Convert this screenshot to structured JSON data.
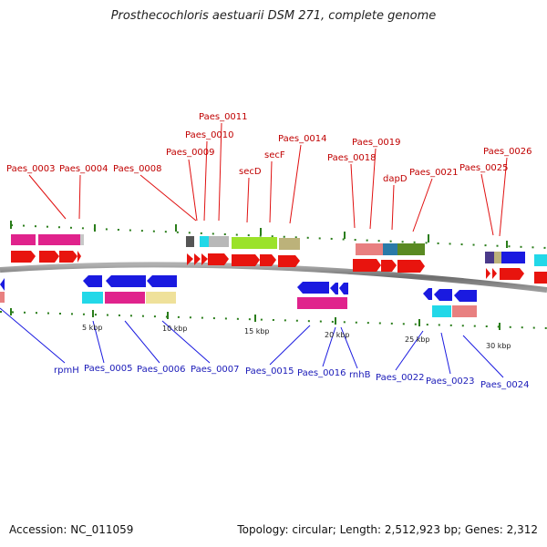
{
  "title": "Prosthecochloris aestuarii DSM 271, complete genome",
  "footer": {
    "accession": "Accession: NC_011059",
    "summary": "Topology: circular; Length: 2,512,923 bp; Genes: 2,312"
  },
  "scale_labels": [
    "5 kbp",
    "10 kbp",
    "15 kbp",
    "20 kbp",
    "25 kbp",
    "30 kbp"
  ],
  "top_gene_labels": [
    "Paes_0003",
    "Paes_0004",
    "Paes_0008",
    "Paes_0009",
    "Paes_0010",
    "Paes_0011",
    "secD",
    "secF",
    "Paes_0014",
    "Paes_0018",
    "Paes_0019",
    "dapD",
    "Paes_0021",
    "Paes_0025",
    "Paes_0026"
  ],
  "bottom_gene_labels": [
    "rpmH",
    "Paes_0005",
    "Paes_0006",
    "Paes_0007",
    "Paes_0015",
    "Paes_0016",
    "rnhB",
    "Paes_0022",
    "Paes_0023",
    "Paes_0024"
  ],
  "colors": {
    "forward_strand": "#e8140e",
    "reverse_strand": "#1a1ae0",
    "top_label": "#c00000",
    "bottom_label": "#1a1ab8",
    "backbone": "#808080",
    "tick": "#2a7d1a"
  }
}
